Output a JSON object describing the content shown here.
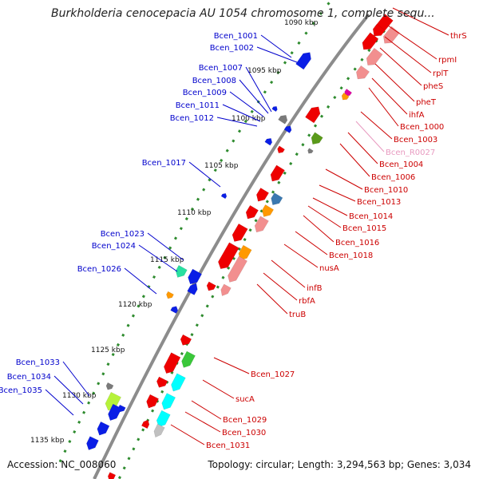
{
  "title": "Burkholderia cenocepacia AU 1054 chromosome 1, complete sequ...",
  "accession": "Accession: NC_008060",
  "topology": "Topology: circular; Length: 3,294,563 bp; Genes: 3,034",
  "colors": {
    "backbone": "#8c8c8c",
    "ticks": "#2e8b2e",
    "label_left": "#0000cc",
    "label_right": "#cc0000",
    "label_pseudo": "#e89ac0",
    "gene_red": "#ee0000",
    "gene_pink": "#f28f8f",
    "gene_blue": "#0a1ee6",
    "gene_cyan": "#00ffff",
    "gene_lime": "#b6f23a",
    "gene_green": "#3ac73a",
    "gene_orange": "#ff9900",
    "gene_gray": "#7a7a7a",
    "gene_teal": "#3a78b0",
    "gene_magenta": "#e000a0",
    "gene_mint": "#28e0a0",
    "gene_silver": "#c0c0c0",
    "gene_olive": "#5a9a1a"
  },
  "kbp_labels": [
    "1090 kbp",
    "1095 kbp",
    "1100 kbp",
    "1105 kbp",
    "1110 kbp",
    "1115 kbp",
    "1120 kbp",
    "1125 kbp",
    "1130 kbp",
    "1135 kbp"
  ],
  "left_gene_labels": [
    "Bcen_1001",
    "Bcen_1002",
    "Bcen_1007",
    "Bcen_1008",
    "Bcen_1009",
    "Bcen_1011",
    "Bcen_1012",
    "Bcen_1017",
    "Bcen_1023",
    "Bcen_1024",
    "Bcen_1026",
    "Bcen_1033",
    "Bcen_1034",
    "Bcen_1035"
  ],
  "right_gene_labels": [
    "thrS",
    "rpmI",
    "rplT",
    "pheS",
    "pheT",
    "ihfA",
    "Bcen_1000",
    "Bcen_1003",
    "Bcen_R0027",
    "Bcen_1004",
    "Bcen_1006",
    "Bcen_1010",
    "Bcen_1013",
    "Bcen_1014",
    "Bcen_1015",
    "Bcen_1016",
    "Bcen_1018",
    "nusA",
    "infB",
    "rbfA",
    "truB",
    "Bcen_1027",
    "sucA",
    "Bcen_1029",
    "Bcen_1030",
    "Bcen_1031"
  ]
}
